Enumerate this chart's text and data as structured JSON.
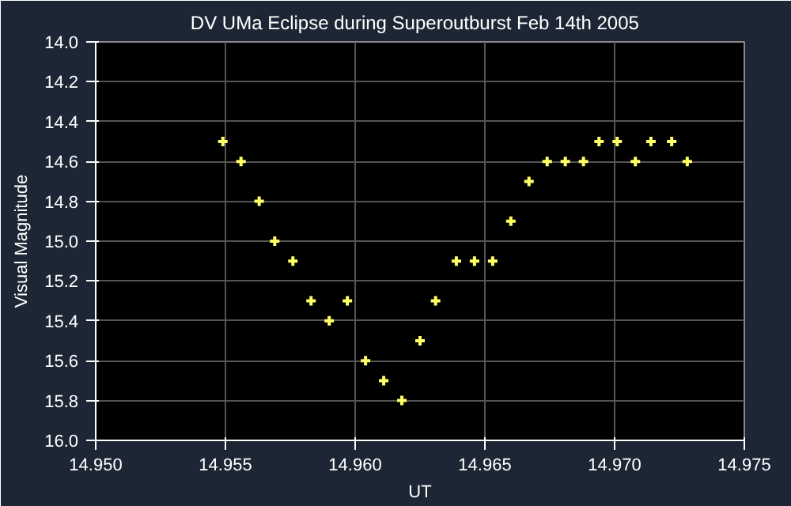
{
  "chart_data": {
    "type": "scatter",
    "title": "DV UMa  Eclipse during Superoutburst  Feb 14th 2005",
    "xlabel": "UT",
    "ylabel": "Visual Magnitude",
    "x": [
      14.9549,
      14.9556,
      14.9563,
      14.9569,
      14.9576,
      14.9583,
      14.959,
      14.9597,
      14.9604,
      14.9611,
      14.9618,
      14.9625,
      14.9631,
      14.9639,
      14.9646,
      14.9653,
      14.966,
      14.9667,
      14.9674,
      14.9681,
      14.9688,
      14.9694,
      14.9701,
      14.9708,
      14.9714,
      14.9722,
      14.9728
    ],
    "values": [
      14.5,
      14.6,
      14.8,
      15.0,
      15.1,
      15.3,
      15.4,
      15.3,
      15.6,
      15.7,
      15.8,
      15.5,
      15.3,
      15.1,
      15.1,
      15.1,
      14.9,
      14.7,
      14.6,
      14.6,
      14.6,
      14.5,
      14.5,
      14.6,
      14.5,
      14.5,
      14.6
    ],
    "color": "#ffff66",
    "marker": "cross",
    "grid": true,
    "xlim": [
      14.95,
      14.975
    ],
    "xticks": [
      {
        "value": 14.95,
        "label": "14.950"
      },
      {
        "value": 14.955,
        "label": "14.955"
      },
      {
        "value": 14.96,
        "label": "14.960"
      },
      {
        "value": 14.965,
        "label": "14.965"
      },
      {
        "value": 14.97,
        "label": "14.970"
      },
      {
        "value": 14.975,
        "label": "14.975"
      }
    ],
    "ylim": [
      16.0,
      14.0
    ],
    "yticks": [
      {
        "value": 14.0,
        "label": "14.0"
      },
      {
        "value": 14.2,
        "label": "14.2"
      },
      {
        "value": 14.4,
        "label": "14.4"
      },
      {
        "value": 14.6,
        "label": "14.6"
      },
      {
        "value": 14.8,
        "label": "14.8"
      },
      {
        "value": 15.0,
        "label": "15.0"
      },
      {
        "value": 15.2,
        "label": "15.2"
      },
      {
        "value": 15.4,
        "label": "15.4"
      },
      {
        "value": 15.6,
        "label": "15.6"
      },
      {
        "value": 15.8,
        "label": "15.8"
      },
      {
        "value": 16.0,
        "label": "16.0"
      }
    ]
  }
}
